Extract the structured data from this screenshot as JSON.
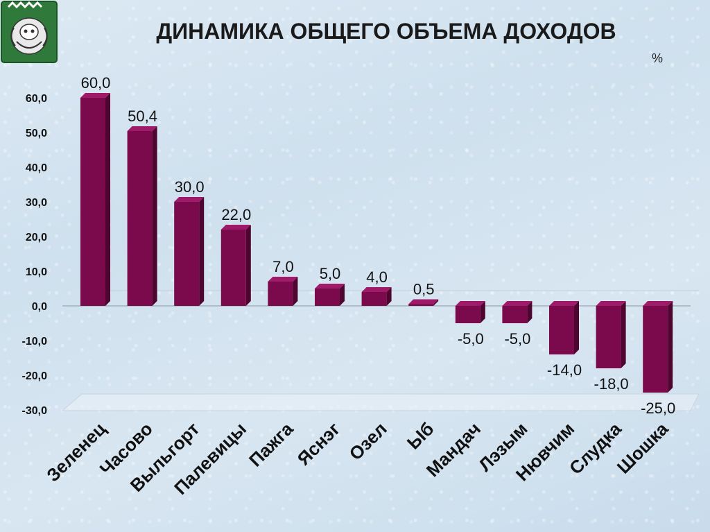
{
  "chart_data": {
    "type": "bar",
    "title": "ДИНАМИКА ОБЩЕГО ОБЪЕМА ДОХОДОВ",
    "unit_label": "%",
    "categories": [
      "Зеленец",
      "Часово",
      "Выльгорт",
      "Палевицы",
      "Пажга",
      "Яснэг",
      "Озел",
      "Ыб",
      "Мандач",
      "Лэзым",
      "Нювчим",
      "Слудка",
      "Шошка"
    ],
    "values": [
      60.0,
      50.4,
      30.0,
      22.0,
      7.0,
      5.0,
      4.0,
      0.5,
      -5.0,
      -5.0,
      -14.0,
      -18.0,
      -25.0
    ],
    "value_labels": [
      "60,0",
      "50,4",
      "30,0",
      "22,0",
      "7,0",
      "5,0",
      "4,0",
      "0,5",
      "-5,0",
      "-5,0",
      "-14,0",
      "-18,0",
      "-25,0"
    ],
    "yticks": [
      60,
      50,
      40,
      30,
      20,
      10,
      0,
      -10,
      -20,
      -30
    ],
    "ytick_labels": [
      "60,0",
      "50,0",
      "40,0",
      "30,0",
      "20,0",
      "10,0",
      "0,0",
      "-10,0",
      "-20,0",
      "-30,0"
    ],
    "ylim": [
      -30,
      60
    ],
    "bar_color": "#7a0a4c",
    "bar_side_color": "#4e0530",
    "bar_top_color": "#a01a6a",
    "grid": false,
    "legend": "none"
  },
  "logo": {
    "icon": "coat-of-arms-icon",
    "color": "#2f7a3a"
  }
}
